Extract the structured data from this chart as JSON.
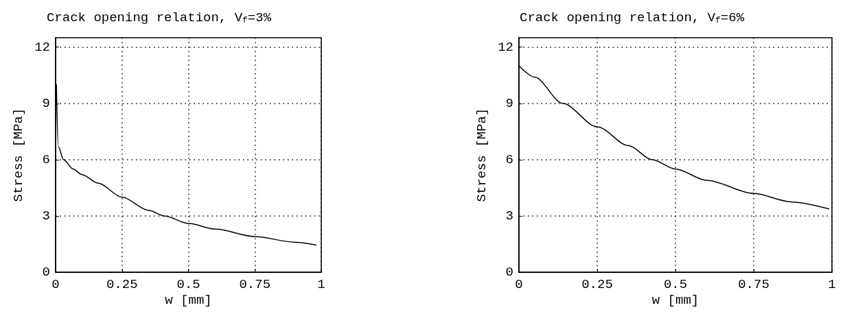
{
  "chart_data": [
    {
      "type": "line",
      "title": "Crack opening relation, V$_{f}$=3%",
      "xlabel": "w [mm]",
      "ylabel": "Stress [MPa]",
      "xlim": [
        0,
        1
      ],
      "xticks": [
        0,
        0.25,
        0.5,
        0.75,
        1
      ],
      "ylim": [
        0,
        12.5
      ],
      "yticks": [
        0,
        3,
        6,
        9,
        12
      ],
      "grid": true,
      "marker": "none",
      "line_style": "solid",
      "series": [
        {
          "color": "#000000",
          "x": [
            0.003,
            0.01,
            0.03,
            0.066,
            0.1,
            0.16,
            0.25,
            0.35,
            0.41,
            0.5,
            0.6,
            0.75,
            0.9,
            0.98
          ],
          "values": [
            10,
            6.7,
            6.0,
            5.5,
            5.2,
            4.75,
            4.0,
            3.3,
            3.0,
            2.6,
            2.3,
            1.9,
            1.6,
            1.45
          ]
        }
      ]
    },
    {
      "type": "line",
      "title": "Crack opening relation, V$_{f}$=6%",
      "xlabel": "w [mm]",
      "ylabel": "Stress [MPa]",
      "xlim": [
        0,
        1
      ],
      "xticks": [
        0,
        0.25,
        0.5,
        0.75,
        1
      ],
      "ylim": [
        0,
        12.5
      ],
      "yticks": [
        0,
        3,
        6,
        9,
        12
      ],
      "grid": true,
      "marker": "none",
      "line_style": "solid",
      "series": [
        {
          "color": "#000000",
          "x": [
            0,
            0.05,
            0.14,
            0.25,
            0.35,
            0.425,
            0.5,
            0.6,
            0.75,
            0.87,
            0.99
          ],
          "values": [
            11,
            10.4,
            9,
            7.75,
            6.75,
            6,
            5.5,
            4.9,
            4.2,
            3.75,
            3.38
          ]
        }
      ]
    }
  ]
}
